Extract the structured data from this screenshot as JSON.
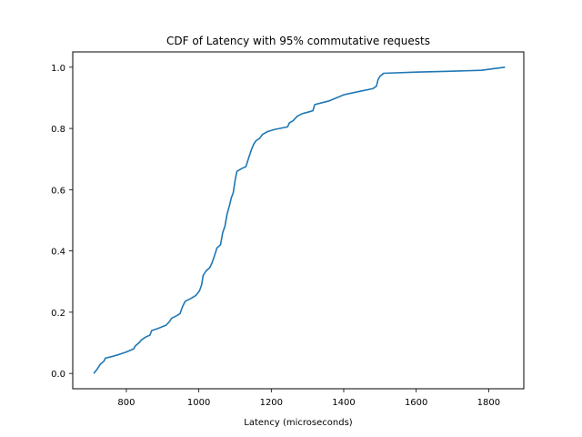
{
  "chart_data": {
    "type": "line",
    "title": "CDF of Latency with 95% commutative requests",
    "xlabel": "Latency (microseconds)",
    "ylabel": "",
    "xlim": [
      652,
      1897
    ],
    "ylim": [
      -0.05,
      1.05
    ],
    "grid": false,
    "legend": "none",
    "x_ticks": [
      800,
      1000,
      1200,
      1400,
      1600,
      1800
    ],
    "y_ticks": [
      0.0,
      0.2,
      0.4,
      0.6,
      0.8,
      1.0
    ],
    "x_tick_labels": [
      "800",
      "1000",
      "1200",
      "1400",
      "1600",
      "1800"
    ],
    "y_tick_labels": [
      "0.0",
      "0.2",
      "0.4",
      "0.6",
      "0.8",
      "1.0"
    ],
    "series": [
      {
        "color": "#1f77b4",
        "points": [
          [
            710,
            0.0
          ],
          [
            720,
            0.015
          ],
          [
            728,
            0.03
          ],
          [
            738,
            0.04
          ],
          [
            742,
            0.05
          ],
          [
            760,
            0.055
          ],
          [
            780,
            0.062
          ],
          [
            800,
            0.07
          ],
          [
            820,
            0.08
          ],
          [
            825,
            0.09
          ],
          [
            835,
            0.1
          ],
          [
            842,
            0.11
          ],
          [
            855,
            0.12
          ],
          [
            865,
            0.125
          ],
          [
            870,
            0.14
          ],
          [
            890,
            0.148
          ],
          [
            910,
            0.158
          ],
          [
            918,
            0.168
          ],
          [
            925,
            0.18
          ],
          [
            938,
            0.188
          ],
          [
            948,
            0.195
          ],
          [
            955,
            0.218
          ],
          [
            962,
            0.235
          ],
          [
            978,
            0.245
          ],
          [
            992,
            0.255
          ],
          [
            1002,
            0.27
          ],
          [
            1008,
            0.29
          ],
          [
            1012,
            0.32
          ],
          [
            1020,
            0.335
          ],
          [
            1030,
            0.345
          ],
          [
            1036,
            0.36
          ],
          [
            1042,
            0.38
          ],
          [
            1050,
            0.41
          ],
          [
            1060,
            0.42
          ],
          [
            1066,
            0.46
          ],
          [
            1072,
            0.48
          ],
          [
            1078,
            0.52
          ],
          [
            1085,
            0.55
          ],
          [
            1090,
            0.575
          ],
          [
            1095,
            0.59
          ],
          [
            1100,
            0.63
          ],
          [
            1105,
            0.66
          ],
          [
            1120,
            0.67
          ],
          [
            1130,
            0.675
          ],
          [
            1138,
            0.705
          ],
          [
            1145,
            0.73
          ],
          [
            1152,
            0.75
          ],
          [
            1158,
            0.76
          ],
          [
            1168,
            0.768
          ],
          [
            1175,
            0.78
          ],
          [
            1190,
            0.79
          ],
          [
            1210,
            0.797
          ],
          [
            1245,
            0.805
          ],
          [
            1250,
            0.818
          ],
          [
            1260,
            0.825
          ],
          [
            1272,
            0.84
          ],
          [
            1285,
            0.848
          ],
          [
            1300,
            0.853
          ],
          [
            1315,
            0.858
          ],
          [
            1320,
            0.878
          ],
          [
            1340,
            0.884
          ],
          [
            1360,
            0.89
          ],
          [
            1380,
            0.9
          ],
          [
            1400,
            0.91
          ],
          [
            1440,
            0.92
          ],
          [
            1480,
            0.93
          ],
          [
            1490,
            0.938
          ],
          [
            1495,
            0.96
          ],
          [
            1500,
            0.97
          ],
          [
            1510,
            0.98
          ],
          [
            1600,
            0.984
          ],
          [
            1700,
            0.987
          ],
          [
            1780,
            0.99
          ],
          [
            1845,
            1.0
          ]
        ]
      }
    ]
  }
}
